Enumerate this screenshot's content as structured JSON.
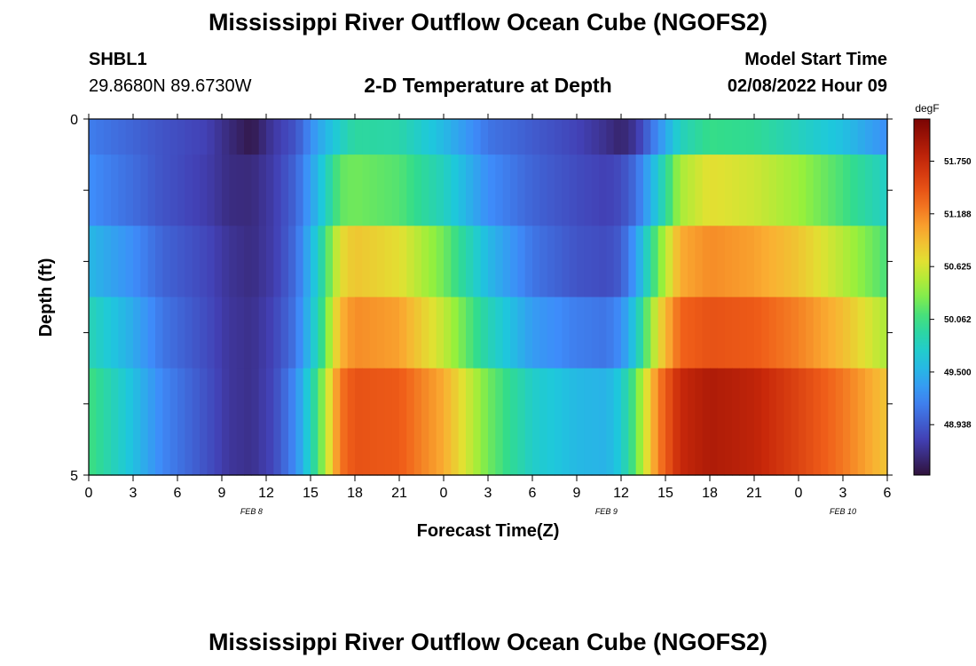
{
  "header": {
    "main_title": "Mississippi River Outflow Ocean Cube (NGOFS2)",
    "station_id": "SHBL1",
    "coordinates": "29.8680N  89.6730W",
    "plot_title": "2-D Temperature at Depth",
    "start_label": "Model Start Time",
    "start_value": "02/08/2022 Hour 09"
  },
  "footer": {
    "repeated_title": "Mississippi River Outflow Ocean Cube (NGOFS2)"
  },
  "chart_data": {
    "type": "heatmap",
    "title": "2-D Temperature at Depth",
    "xlabel": "Forecast Time(Z)",
    "ylabel": "Depth (ft)",
    "x_range_hours": [
      0,
      54
    ],
    "x_tick_labels": [
      "0",
      "3",
      "6",
      "9",
      "12",
      "15",
      "18",
      "21",
      "0",
      "3",
      "6",
      "9",
      "12",
      "15",
      "18",
      "21",
      "0",
      "3",
      "6"
    ],
    "date_labels": [
      {
        "label": "FEB 8",
        "hour": 11
      },
      {
        "label": "FEB 9",
        "hour": 35
      },
      {
        "label": "FEB 10",
        "hour": 51
      }
    ],
    "y_tick_labels": [
      "0",
      "5"
    ],
    "y_range": [
      0,
      5
    ],
    "depth_layers": 5,
    "colorbar": {
      "unit": "degF",
      "min": 48.4,
      "max": 52.2,
      "tick_values": [
        51.75,
        51.188,
        50.625,
        50.062,
        49.5,
        48.938
      ],
      "tick_labels": [
        "51.750",
        "51.188",
        "50.625",
        "50.062",
        "49.500",
        "48.938"
      ]
    },
    "series": [
      {
        "layer": 1,
        "hours": [
          0,
          3,
          5,
          8,
          9.5,
          11,
          12.5,
          14,
          15.5,
          17,
          18,
          21,
          24,
          27,
          30,
          33,
          35,
          36,
          37,
          38.5,
          40,
          42,
          45,
          48,
          51,
          54
        ],
        "temps": [
          49.15,
          49.0,
          48.9,
          48.78,
          48.6,
          48.45,
          48.72,
          48.9,
          49.4,
          49.75,
          49.95,
          49.9,
          49.55,
          49.1,
          48.95,
          48.8,
          48.65,
          48.55,
          48.7,
          49.25,
          49.8,
          50.05,
          50.0,
          49.8,
          49.6,
          49.25
        ]
      },
      {
        "layer": 2,
        "hours": [
          0,
          3,
          5,
          8,
          9.5,
          11,
          12.5,
          14,
          15.5,
          17,
          18,
          21,
          24,
          27,
          30,
          33,
          35,
          36,
          37,
          38.5,
          40,
          42,
          45,
          48,
          51,
          54
        ],
        "temps": [
          49.25,
          49.05,
          48.9,
          48.75,
          48.62,
          48.6,
          48.75,
          49.0,
          49.55,
          50.2,
          50.25,
          50.15,
          49.8,
          49.25,
          49.0,
          48.85,
          48.78,
          48.85,
          49.05,
          49.7,
          50.45,
          50.7,
          50.6,
          50.4,
          50.1,
          49.75
        ]
      },
      {
        "layer": 3,
        "hours": [
          0,
          3,
          5,
          8,
          9.5,
          11,
          12.5,
          14,
          15.5,
          17,
          18,
          21,
          24,
          27,
          30,
          33,
          35,
          36,
          37,
          38.5,
          40,
          42,
          45,
          48,
          51,
          54
        ],
        "temps": [
          49.55,
          49.25,
          49.0,
          48.82,
          48.68,
          48.62,
          48.75,
          49.05,
          49.75,
          50.7,
          50.85,
          50.7,
          50.25,
          49.55,
          49.1,
          48.9,
          48.85,
          48.95,
          49.35,
          50.25,
          51.0,
          51.15,
          51.05,
          50.85,
          50.5,
          50.1
        ]
      },
      {
        "layer": 4,
        "hours": [
          0,
          3,
          5,
          8,
          9.5,
          11,
          12.5,
          14,
          15.5,
          17,
          18,
          21,
          24,
          27,
          30,
          33,
          35,
          36,
          37,
          38.5,
          40,
          42,
          45,
          48,
          51,
          54
        ],
        "temps": [
          49.85,
          49.45,
          49.1,
          48.85,
          48.7,
          48.65,
          48.8,
          49.1,
          49.85,
          50.95,
          51.15,
          51.05,
          50.55,
          49.85,
          49.35,
          49.15,
          49.1,
          49.25,
          49.7,
          50.7,
          51.35,
          51.45,
          51.4,
          51.2,
          50.9,
          50.45
        ]
      },
      {
        "layer": 5,
        "hours": [
          0,
          3,
          5,
          8,
          9.5,
          11,
          12.5,
          14,
          15.5,
          17,
          18,
          21,
          24,
          27,
          30,
          33,
          35,
          36,
          37,
          38.5,
          40,
          42,
          45,
          48,
          51,
          54
        ],
        "temps": [
          50.1,
          49.6,
          49.2,
          48.88,
          48.7,
          48.65,
          48.82,
          49.25,
          50.1,
          51.25,
          51.45,
          51.4,
          51.0,
          50.25,
          49.75,
          49.55,
          49.5,
          49.7,
          50.2,
          51.2,
          51.75,
          51.9,
          51.8,
          51.55,
          51.25,
          50.85
        ]
      }
    ]
  }
}
